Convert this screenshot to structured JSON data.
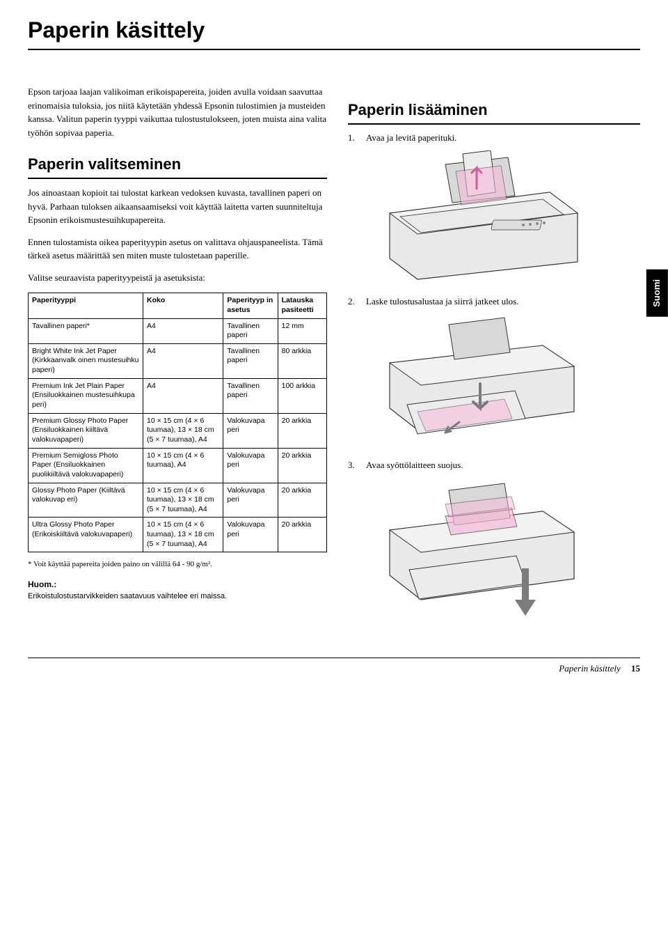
{
  "page_title": "Paperin käsittely",
  "intro_paragraph": "Epson tarjoaa laajan valikoiman erikoispapereita, joiden avulla voidaan saavuttaa erinomaisia tuloksia, jos niitä käytetään yhdessä Epsonin tulostimien ja musteiden kanssa. Valitun paperin tyyppi vaikuttaa tulostustulokseen, joten muista aina valita työhön sopivaa paperia.",
  "left": {
    "heading": "Paperin valitseminen",
    "para1": "Jos ainoastaan kopioit tai tulostat karkean vedoksen kuvasta, tavallinen paperi on hyvä. Parhaan tuloksen aikaansaamiseksi voit käyttää laitetta varten suunniteltuja Epsonin erikoismustesuihkupapereita.",
    "para2": "Ennen tulostamista oikea paperityypin asetus on valittava ohjauspaneelista. Tämä tärkeä asetus määrittää sen miten muste tulostetaan paperille.",
    "para3": "Valitse seuraavista paperityypeistä ja asetuksista:",
    "table": {
      "columns": [
        "Paperityyppi",
        "Koko",
        "Paperityyp in asetus",
        "Latauska pasiteetti"
      ],
      "rows": [
        [
          "Tavallinen paperi*",
          "A4",
          "Tavallinen paperi",
          "12 mm"
        ],
        [
          "Bright White Ink Jet Paper (Kirkkaanvalk oinen mustesuihku paperi)",
          "A4",
          "Tavallinen paperi",
          "80 arkkia"
        ],
        [
          "Premium Ink Jet Plain Paper (Ensiluokkainen mustesuihkupa peri)",
          "A4",
          "Tavallinen paperi",
          "100 arkkia"
        ],
        [
          "Premium Glossy Photo Paper (Ensiluokkainen kiiltävä valokuvapaperi)",
          "10 × 15 cm (4 × 6 tuumaa), 13 × 18 cm (5 × 7 tuumaa), A4",
          "Valokuvapa peri",
          "20 arkkia"
        ],
        [
          "Premium Semigloss Photo Paper (Ensiluokkainen puolikiiltävä valokuvapaperi)",
          "10 × 15 cm (4 × 6 tuumaa), A4",
          "Valokuvapa peri",
          "20 arkkia"
        ],
        [
          "Glossy Photo Paper (Kiiltävä valokuvap eri)",
          "10 × 15 cm (4 × 6 tuumaa), 13 × 18 cm (5 × 7 tuumaa), A4",
          "Valokuvapa peri",
          "20 arkkia"
        ],
        [
          "Ultra Glossy Photo Paper (Erikoiskiiltävä valokuvapaperi)",
          "10 × 15 cm (4 × 6 tuumaa), 13 × 18 cm (5 × 7 tuumaa), A4",
          "Valokuvapa peri",
          "20 arkkia"
        ]
      ]
    },
    "footnote": "* Voit käyttää papereita joiden paino on välillä 64 - 90 g/m².",
    "note_label": "Huom.:",
    "note_text": "Erikoistulostustarvikkeiden saatavuus vaihtelee eri maissa."
  },
  "right": {
    "heading": "Paperin lisääminen",
    "steps": [
      "Avaa ja levitä paperituki.",
      "Laske tulostusalustaa ja siirrä jatkeet ulos.",
      "Avaa syöttölaitteen suojus."
    ]
  },
  "side_tab": "Suomi",
  "footer_title": "Paperin käsittely",
  "footer_page": "15",
  "illustration": {
    "printer_body_fill": "#e9e9e9",
    "printer_body_stroke": "#333333",
    "paper_fill": "#ffffff",
    "highlight_fill": "#f7b9d9",
    "arrow_fill": "#7b7b7b"
  }
}
